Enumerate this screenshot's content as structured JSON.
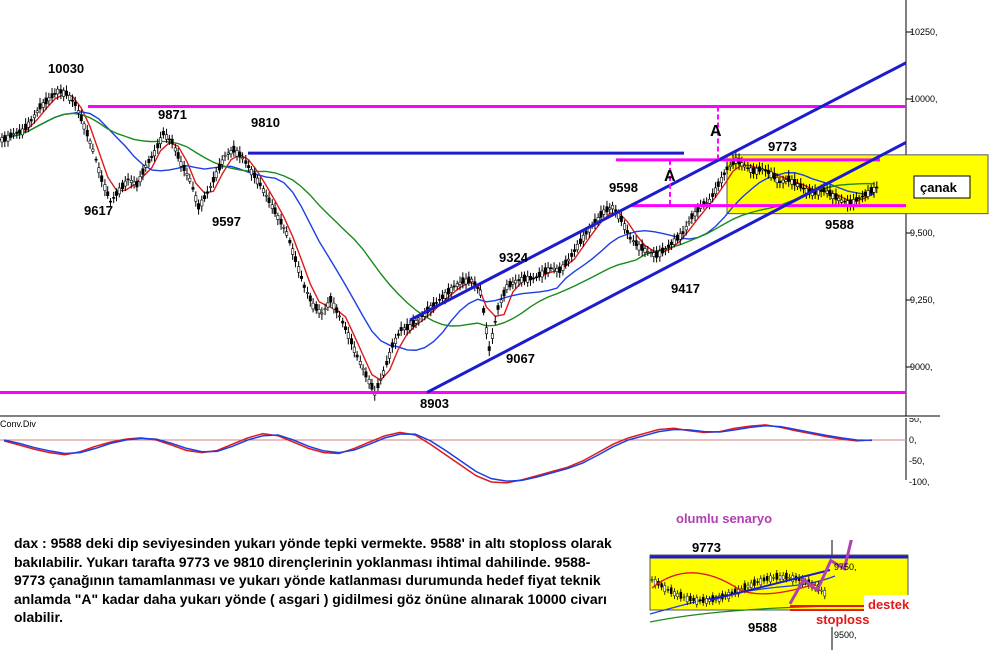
{
  "colors": {
    "magenta": "#ff00ff",
    "blue_channel": "#1c1ccf",
    "sma_fast": "#e01818",
    "sma_mid": "#1a3fe6",
    "sma_slow": "#1a8a1a",
    "box_fill": "#ffff00",
    "scenario": "#b040b0",
    "stop": "#e01818"
  },
  "chart_data": [
    {
      "type": "line",
      "series_style": "candlestick",
      "y_axis": {
        "ticks": [
          9000,
          9250,
          9500,
          9750,
          10000,
          10250
        ],
        "tick_labels": [
          "9000,",
          "9,250,",
          "9,500,",
          "9,750,",
          "10000,",
          "10250,"
        ],
        "ylim": [
          8820,
          10370
        ]
      },
      "annotations": {
        "price_labels": [
          "10030",
          "9871",
          "9810",
          "9617",
          "9597",
          "9324",
          "9067",
          "8903",
          "9598",
          "9417",
          "9773",
          "9588"
        ],
        "letter_labels": [
          "A",
          "A"
        ],
        "box_label": "çanak"
      },
      "levels": {
        "upper_magenta": 9972,
        "lower_magenta": 8905,
        "box_top": 9773,
        "box_bottom": 9602,
        "blue_resistance": 9798
      },
      "channel": {
        "lower_start_price": 8905,
        "lower_end_price": 9838,
        "upper_start_price": 9175,
        "upper_end_price": 10135
      },
      "price_series": [
        9850,
        9870,
        9880,
        9920,
        9970,
        10000,
        10030,
        10020,
        9980,
        9900,
        9810,
        9700,
        9617,
        9660,
        9700,
        9680,
        9750,
        9800,
        9871,
        9840,
        9760,
        9700,
        9597,
        9650,
        9720,
        9790,
        9810,
        9780,
        9730,
        9680,
        9620,
        9560,
        9500,
        9400,
        9300,
        9230,
        9200,
        9250,
        9190,
        9120,
        9040,
        8970,
        8903,
        8980,
        9080,
        9140,
        9150,
        9180,
        9210,
        9240,
        9270,
        9300,
        9320,
        9324,
        9280,
        9067,
        9220,
        9300,
        9320,
        9330,
        9330,
        9350,
        9370,
        9360,
        9400,
        9450,
        9500,
        9540,
        9580,
        9598,
        9550,
        9480,
        9450,
        9430,
        9417,
        9440,
        9470,
        9500,
        9560,
        9600,
        9620,
        9680,
        9740,
        9773,
        9750,
        9730,
        9740,
        9720,
        9690,
        9700,
        9680,
        9660,
        9650,
        9660,
        9640,
        9620,
        9610,
        9630,
        9650,
        9670
      ]
    },
    {
      "type": "line",
      "indicator_label": "Conv.Div",
      "y_axis": {
        "ticks": [
          50,
          0,
          -50,
          -100
        ],
        "tick_labels": [
          "50,",
          "0,",
          "-50,",
          "-100,"
        ],
        "ylim": [
          -110,
          60
        ]
      },
      "series": [
        {
          "values": [
            -2,
            -12,
            -22,
            -30,
            -35,
            -28,
            -15,
            -5,
            2,
            5,
            0,
            -12,
            -25,
            -30,
            -25,
            -10,
            5,
            15,
            10,
            -5,
            -20,
            -30,
            -32,
            -20,
            -5,
            10,
            18,
            12,
            -10,
            -35,
            -60,
            -85,
            -100,
            -102,
            -95,
            -85,
            -75,
            -65,
            -50,
            -30,
            -10,
            5,
            15,
            25,
            28,
            22,
            18,
            20,
            28,
            33,
            36,
            30,
            22,
            15,
            8,
            2,
            -2,
            0
          ]
        },
        {
          "values": [
            0,
            -8,
            -18,
            -26,
            -32,
            -30,
            -20,
            -8,
            0,
            4,
            2,
            -8,
            -20,
            -28,
            -27,
            -15,
            0,
            10,
            12,
            0,
            -15,
            -26,
            -30,
            -24,
            -10,
            5,
            14,
            14,
            -2,
            -25,
            -50,
            -75,
            -92,
            -98,
            -96,
            -88,
            -78,
            -68,
            -55,
            -36,
            -16,
            0,
            10,
            20,
            25,
            24,
            20,
            19,
            24,
            30,
            34,
            32,
            25,
            18,
            11,
            5,
            0,
            -1
          ]
        }
      ]
    },
    {
      "type": "line",
      "series_style": "candlestick",
      "title": "olumlu senaryo",
      "annotations": {
        "price_labels": [
          "9773",
          "9588"
        ],
        "support_label": "destek",
        "stop_label": "stoploss"
      },
      "y_axis": {
        "tick_labels": [
          "9750,",
          "9500,"
        ]
      },
      "scenario_path": [
        9610,
        9700,
        9660,
        9770,
        9740,
        9950
      ]
    }
  ],
  "commentary": "dax : 9588 deki dip seviyesinden yukarı yönde tepki vermekte. 9588' in altı stoploss olarak bakılabilir. Yukarı tarafta 9773 ve 9810 dirençlerinin yoklanması ihtimal dahilinde. 9588-9773 çanağının tamamlanması ve yukarı yönde katlanması durumunda hedef fiyat teknik anlamda \"A\" kadar daha yukarı yönde ( asgari ) gidilmesi göz önüne alınarak 10000 civarı olabilir."
}
